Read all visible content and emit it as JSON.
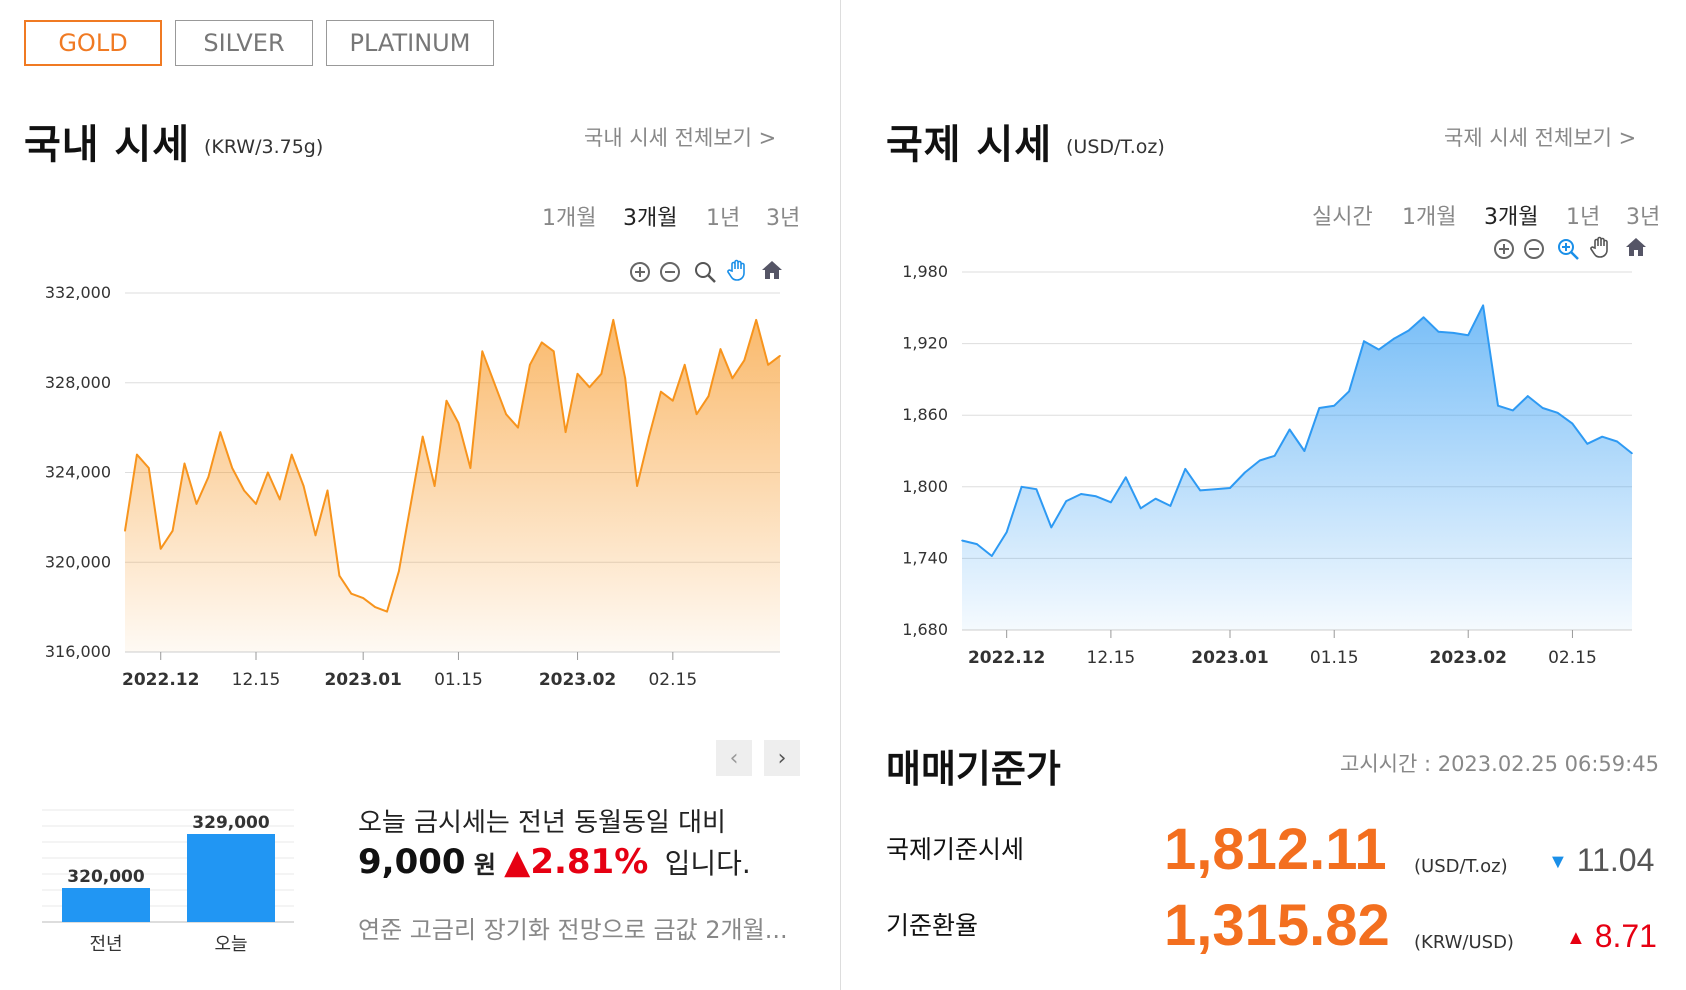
{
  "tabs": [
    {
      "label": "GOLD",
      "active": true
    },
    {
      "label": "SILVER",
      "active": false
    },
    {
      "label": "PLATINUM",
      "active": false
    }
  ],
  "domestic": {
    "title": "국내 시세",
    "unit": "(KRW/3.75g)",
    "more_link": "국내 시세 전체보기 >",
    "periods": [
      "1개월",
      "3개월",
      "1년",
      "3년"
    ],
    "active_period": "3개월"
  },
  "international": {
    "title": "국제 시세",
    "unit": "(USD/T.oz)",
    "more_link": "국제 시세 전체보기 >",
    "periods": [
      "실시간",
      "1개월",
      "3개월",
      "1년",
      "3년"
    ],
    "active_period": "3개월"
  },
  "colors": {
    "accent": "#f07a23",
    "domestic_line": "#f7941d",
    "international_line": "#2e9af3",
    "up": "#e60012",
    "down": "#1a8fe8",
    "bar": "#2196f3"
  },
  "chart_data": [
    {
      "type": "area",
      "series": [
        {
          "values": [
            321400,
            324800,
            324200,
            320600,
            321400,
            324400,
            322600,
            323800,
            325800,
            324200,
            323200,
            322600,
            324000,
            322800,
            324800,
            323400,
            321200,
            323200,
            319400,
            318600,
            318400,
            318000,
            317800,
            319600,
            322600,
            325600,
            323400,
            327200,
            326200,
            324200,
            329400,
            328000,
            326600,
            326000,
            328800,
            329800,
            329400,
            325800,
            328400,
            327800,
            328400,
            330800,
            328200,
            323400,
            325600,
            327600,
            327200,
            328800,
            326600,
            327400,
            329500,
            328200,
            329000,
            330800,
            328800,
            329200
          ]
        }
      ],
      "ylim": [
        316000,
        332000
      ],
      "yticks": [
        "332,000",
        "328,000",
        "324,000",
        "320,000",
        "316,000"
      ],
      "yticks_values": [
        332000,
        328000,
        324000,
        320000,
        316000
      ],
      "xticks": [
        {
          "label": "2022.12",
          "bold": true,
          "index": 3
        },
        {
          "label": "12.15",
          "bold": false,
          "index": 11
        },
        {
          "label": "2023.01",
          "bold": true,
          "index": 20
        },
        {
          "label": "01.15",
          "bold": false,
          "index": 28
        },
        {
          "label": "2023.02",
          "bold": true,
          "index": 38
        },
        {
          "label": "02.15",
          "bold": false,
          "index": 46
        }
      ]
    },
    {
      "type": "area",
      "series": [
        {
          "values": [
            1755,
            1752,
            1742,
            1762,
            1800,
            1798,
            1766,
            1788,
            1794,
            1792,
            1787,
            1808,
            1782,
            1790,
            1784,
            1815,
            1797,
            1798,
            1799,
            1812,
            1822,
            1826,
            1848,
            1830,
            1866,
            1868,
            1880,
            1922,
            1915,
            1924,
            1931,
            1942,
            1930,
            1929,
            1927,
            1952,
            1868,
            1864,
            1876,
            1866,
            1862,
            1853,
            1836,
            1842,
            1838,
            1828
          ]
        }
      ],
      "ylim": [
        1680,
        1980
      ],
      "yticks": [
        "1,980",
        "1,920",
        "1,860",
        "1,800",
        "1,740",
        "1,680"
      ],
      "yticks_values": [
        1980,
        1920,
        1860,
        1800,
        1740,
        1680
      ],
      "xticks": [
        {
          "label": "2022.12",
          "bold": true,
          "index": 3
        },
        {
          "label": "12.15",
          "bold": false,
          "index": 10
        },
        {
          "label": "2023.01",
          "bold": true,
          "index": 18
        },
        {
          "label": "01.15",
          "bold": false,
          "index": 25
        },
        {
          "label": "2023.02",
          "bold": true,
          "index": 34
        },
        {
          "label": "02.15",
          "bold": false,
          "index": 41
        }
      ]
    },
    {
      "type": "bar",
      "categories": [
        "전년",
        "오늘"
      ],
      "values": [
        320000,
        329000
      ],
      "value_labels": [
        "320,000",
        "329,000"
      ]
    }
  ],
  "comparison": {
    "line1": "오늘 금시세는 전년 동월동일 대비",
    "amount": "9,000",
    "amount_unit": "원",
    "pct": "2.81%",
    "suffix": "입니다.",
    "news": "연준 고금리 장기화 전망으로 금값 2개월..."
  },
  "reference": {
    "title": "매매기준가",
    "notice": "고시시간 : 2023.02.25 06:59:45",
    "rows": [
      {
        "label": "국제기준시세",
        "value": "1,812.11",
        "unit": "(USD/T.oz)",
        "change": "11.04",
        "direction": "down"
      },
      {
        "label": "기준환율",
        "value": "1,315.82",
        "unit": "(KRW/USD)",
        "change": "8.71",
        "direction": "up"
      }
    ]
  }
}
